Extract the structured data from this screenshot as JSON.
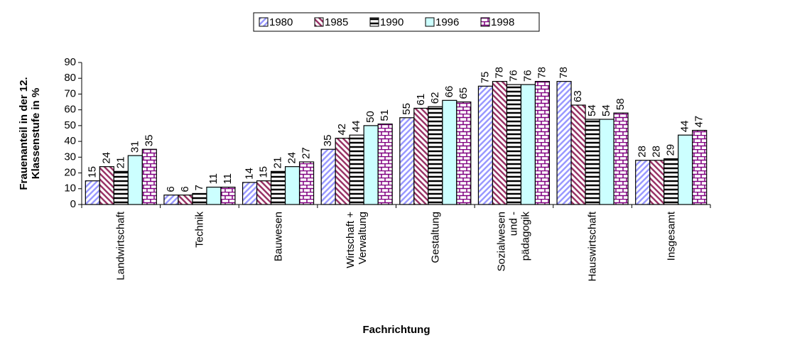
{
  "chart_data": {
    "type": "bar",
    "y_label": "Frauenanteil in der 12.\nKlassenstufe in %",
    "x_label": "Fachrichtung",
    "categories": [
      "Landwirtschaft",
      "Technik",
      "Bauwesen",
      "Wirtschaft +\nVerwaltung",
      "Gestaltung",
      "Sozialwesen\nund -\npädagogik",
      "Hauswirtschaft",
      "Insgesamt"
    ],
    "series": [
      {
        "name": "1980",
        "color": "#9999ff",
        "pattern": "diagonal-up",
        "values": [
          15,
          6,
          14,
          35,
          55,
          75,
          78,
          28
        ]
      },
      {
        "name": "1985",
        "color": "#993366",
        "pattern": "diagonal-down",
        "values": [
          24,
          6,
          15,
          42,
          61,
          78,
          63,
          28
        ]
      },
      {
        "name": "1990",
        "color": "#000000",
        "pattern": "horizontal",
        "values": [
          21,
          7,
          21,
          44,
          62,
          76,
          54,
          29
        ]
      },
      {
        "name": "1996",
        "color": "#ccffff",
        "pattern": "solid",
        "values": [
          31,
          11,
          24,
          50,
          66,
          76,
          54,
          44
        ]
      },
      {
        "name": "1998",
        "color": "#800080",
        "pattern": "brick",
        "values": [
          35,
          11,
          27,
          51,
          65,
          78,
          58,
          47
        ]
      }
    ],
    "ylim": [
      0,
      90
    ],
    "yticks": [
      0,
      10,
      20,
      30,
      40,
      50,
      60,
      70,
      80,
      90
    ],
    "grid": false,
    "legend": "top"
  }
}
